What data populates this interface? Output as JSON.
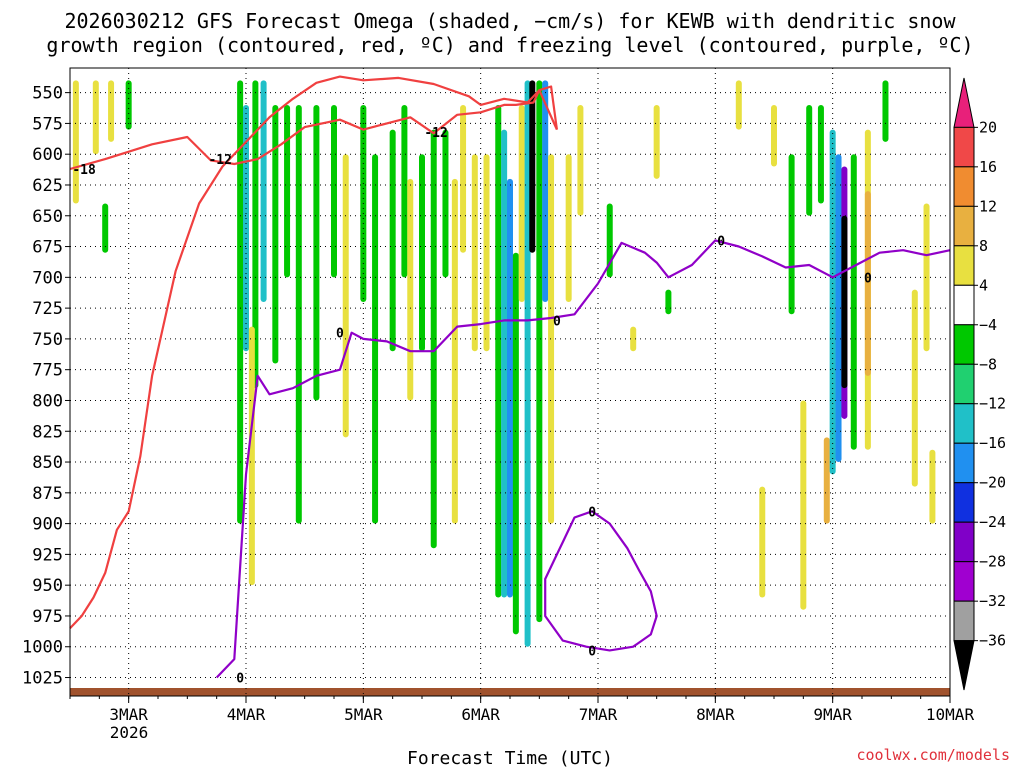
{
  "chart_data": {
    "type": "heatmap",
    "title_line1": "2026030212 GFS Forecast Omega (shaded, −cm/s) for KEWB with dendritic snow",
    "title_line2": "growth region (contoured, red, ºC) and freezing level (contoured, purple, ºC)",
    "xlabel": "Forecast Time (UTC)",
    "ylabel": "",
    "x_ticks": [
      "3MAR",
      "4MAR",
      "5MAR",
      "6MAR",
      "7MAR",
      "8MAR",
      "9MAR",
      "10MAR"
    ],
    "x_year": "2026",
    "xlim": [
      2.5,
      10.0
    ],
    "y_ticks": [
      550,
      575,
      600,
      625,
      650,
      675,
      700,
      725,
      750,
      775,
      800,
      825,
      850,
      875,
      900,
      925,
      950,
      975,
      1000,
      1025
    ],
    "ylim": [
      530,
      1040
    ],
    "y_reversed": true,
    "grid": true,
    "colorbar": {
      "labels": [
        "20",
        "16",
        "12",
        "8",
        "4",
        "−4",
        "−8",
        "−12",
        "−16",
        "−20",
        "−24",
        "−28",
        "−32",
        "−36"
      ],
      "colors": [
        "#e8207a",
        "#f04848",
        "#f08c30",
        "#e8b040",
        "#e8e040",
        "#ffffff",
        "#00c800",
        "#20d070",
        "#20c0c8",
        "#2090f0",
        "#1030e0",
        "#8000c8",
        "#a000d0",
        "#a0a0a0",
        "#000000"
      ]
    },
    "contour_labels": {
      "dgz_cold": "-18",
      "dgz_warm": "-12",
      "freezing": "0"
    },
    "dendritic_growth_upper_hPa": {
      "x": [
        2.5,
        2.8,
        3.0,
        3.2,
        3.5,
        3.7,
        3.9,
        4.1,
        4.3,
        4.5,
        4.8,
        5.0,
        5.2,
        5.4,
        5.6,
        5.8,
        6.0,
        6.2,
        6.3,
        6.45,
        6.5,
        6.6,
        6.65
      ],
      "values": [
        612,
        604,
        598,
        592,
        586,
        605,
        608,
        604,
        592,
        578,
        572,
        580,
        575,
        570,
        583,
        568,
        566,
        560,
        560,
        558,
        548,
        545,
        580
      ]
    },
    "dendritic_growth_lower_hPa": {
      "x": [
        2.5,
        2.6,
        2.7,
        2.8,
        2.9,
        3.0,
        3.1,
        3.2,
        3.4,
        3.6,
        3.8,
        4.0,
        4.2,
        4.4,
        4.6,
        4.8,
        5.0,
        5.3,
        5.6,
        5.9,
        6.0,
        6.2,
        6.4,
        6.5,
        6.65
      ],
      "values": [
        985,
        975,
        960,
        940,
        905,
        890,
        845,
        780,
        695,
        640,
        610,
        590,
        570,
        555,
        542,
        537,
        540,
        538,
        543,
        553,
        560,
        555,
        558,
        548,
        580
      ]
    },
    "freezing_level_hPa": {
      "x": [
        3.75,
        3.9,
        4.0,
        4.1,
        4.2,
        4.4,
        4.6,
        4.8,
        4.9,
        5.0,
        5.2,
        5.4,
        5.6,
        5.8,
        6.0,
        6.2,
        6.4,
        6.6,
        6.8,
        7.0,
        7.2,
        7.4,
        7.5,
        7.6,
        7.8,
        8.0,
        8.2,
        8.4,
        8.6,
        8.8,
        9.0,
        9.2,
        9.4,
        9.6,
        9.8,
        10.0
      ],
      "values": [
        1025,
        1010,
        860,
        780,
        795,
        790,
        780,
        775,
        745,
        750,
        752,
        760,
        760,
        740,
        738,
        735,
        735,
        733,
        730,
        705,
        672,
        680,
        688,
        700,
        690,
        670,
        675,
        683,
        692,
        690,
        700,
        690,
        680,
        678,
        682,
        678
      ]
    },
    "freezing_level_closed_hPa": {
      "x": [
        6.65,
        6.7,
        6.8,
        6.95,
        7.1,
        7.25,
        7.35,
        7.45,
        7.5,
        7.45,
        7.3,
        7.1,
        6.9,
        6.7,
        6.55,
        6.55,
        6.65
      ],
      "values": [
        925,
        915,
        895,
        890,
        900,
        920,
        938,
        955,
        975,
        990,
        1000,
        1003,
        1000,
        995,
        975,
        945,
        925
      ]
    },
    "omega_cells": [
      {
        "x": 2.55,
        "p_top": 540,
        "p_bot": 640,
        "value": 5
      },
      {
        "x": 2.72,
        "p_top": 540,
        "p_bot": 600,
        "value": 5
      },
      {
        "x": 2.85,
        "p_top": 540,
        "p_bot": 590,
        "value": 5
      },
      {
        "x": 3.0,
        "p_top": 540,
        "p_bot": 580,
        "value": -6
      },
      {
        "x": 2.8,
        "p_top": 640,
        "p_bot": 680,
        "value": -6
      },
      {
        "x": 3.95,
        "p_top": 540,
        "p_bot": 900,
        "value": -6
      },
      {
        "x": 4.0,
        "p_top": 560,
        "p_bot": 760,
        "value": -12
      },
      {
        "x": 4.08,
        "p_top": 540,
        "p_bot": 790,
        "value": -6
      },
      {
        "x": 4.15,
        "p_top": 540,
        "p_bot": 720,
        "value": -12
      },
      {
        "x": 4.05,
        "p_top": 740,
        "p_bot": 950,
        "value": 5
      },
      {
        "x": 4.25,
        "p_top": 560,
        "p_bot": 770,
        "value": -6
      },
      {
        "x": 4.35,
        "p_top": 560,
        "p_bot": 700,
        "value": -6
      },
      {
        "x": 4.45,
        "p_top": 560,
        "p_bot": 900,
        "value": -6
      },
      {
        "x": 4.6,
        "p_top": 560,
        "p_bot": 800,
        "value": -6
      },
      {
        "x": 4.75,
        "p_top": 560,
        "p_bot": 700,
        "value": -6
      },
      {
        "x": 4.85,
        "p_top": 600,
        "p_bot": 830,
        "value": 5
      },
      {
        "x": 5.0,
        "p_top": 560,
        "p_bot": 720,
        "value": -6
      },
      {
        "x": 5.1,
        "p_top": 600,
        "p_bot": 900,
        "value": -6
      },
      {
        "x": 5.25,
        "p_top": 580,
        "p_bot": 760,
        "value": -6
      },
      {
        "x": 5.35,
        "p_top": 560,
        "p_bot": 700,
        "value": -6
      },
      {
        "x": 5.4,
        "p_top": 620,
        "p_bot": 800,
        "value": 5
      },
      {
        "x": 5.5,
        "p_top": 600,
        "p_bot": 760,
        "value": -6
      },
      {
        "x": 5.6,
        "p_top": 580,
        "p_bot": 920,
        "value": -6
      },
      {
        "x": 5.7,
        "p_top": 580,
        "p_bot": 700,
        "value": -6
      },
      {
        "x": 5.78,
        "p_top": 620,
        "p_bot": 900,
        "value": 5
      },
      {
        "x": 5.85,
        "p_top": 560,
        "p_bot": 680,
        "value": 5
      },
      {
        "x": 5.95,
        "p_top": 600,
        "p_bot": 760,
        "value": 5
      },
      {
        "x": 6.05,
        "p_top": 600,
        "p_bot": 760,
        "value": 5
      },
      {
        "x": 6.15,
        "p_top": 560,
        "p_bot": 960,
        "value": -6
      },
      {
        "x": 6.2,
        "p_top": 580,
        "p_bot": 960,
        "value": -12
      },
      {
        "x": 6.25,
        "p_top": 620,
        "p_bot": 960,
        "value": -18
      },
      {
        "x": 6.3,
        "p_top": 680,
        "p_bot": 990,
        "value": -6
      },
      {
        "x": 6.35,
        "p_top": 560,
        "p_bot": 720,
        "value": 5
      },
      {
        "x": 6.4,
        "p_top": 540,
        "p_bot": 1000,
        "value": -12
      },
      {
        "x": 6.44,
        "p_top": 540,
        "p_bot": 680,
        "value": -36
      },
      {
        "x": 6.5,
        "p_top": 540,
        "p_bot": 980,
        "value": -6
      },
      {
        "x": 6.55,
        "p_top": 540,
        "p_bot": 720,
        "value": -18
      },
      {
        "x": 6.6,
        "p_top": 600,
        "p_bot": 900,
        "value": 5
      },
      {
        "x": 6.75,
        "p_top": 600,
        "p_bot": 720,
        "value": 5
      },
      {
        "x": 6.85,
        "p_top": 560,
        "p_bot": 650,
        "value": 5
      },
      {
        "x": 7.1,
        "p_top": 640,
        "p_bot": 700,
        "value": -6
      },
      {
        "x": 7.3,
        "p_top": 740,
        "p_bot": 760,
        "value": 5
      },
      {
        "x": 7.5,
        "p_top": 560,
        "p_bot": 620,
        "value": 5
      },
      {
        "x": 7.6,
        "p_top": 710,
        "p_bot": 730,
        "value": -6
      },
      {
        "x": 8.2,
        "p_top": 540,
        "p_bot": 580,
        "value": 5
      },
      {
        "x": 8.4,
        "p_top": 870,
        "p_bot": 960,
        "value": 5
      },
      {
        "x": 8.5,
        "p_top": 560,
        "p_bot": 610,
        "value": 5
      },
      {
        "x": 8.65,
        "p_top": 600,
        "p_bot": 730,
        "value": -6
      },
      {
        "x": 8.75,
        "p_top": 800,
        "p_bot": 970,
        "value": 5
      },
      {
        "x": 8.8,
        "p_top": 560,
        "p_bot": 650,
        "value": -6
      },
      {
        "x": 8.9,
        "p_top": 560,
        "p_bot": 640,
        "value": -6
      },
      {
        "x": 8.95,
        "p_top": 830,
        "p_bot": 900,
        "value": 10
      },
      {
        "x": 9.0,
        "p_top": 580,
        "p_bot": 860,
        "value": -12
      },
      {
        "x": 9.05,
        "p_top": 600,
        "p_bot": 850,
        "value": -18
      },
      {
        "x": 9.1,
        "p_top": 610,
        "p_bot": 815,
        "value": -24
      },
      {
        "x": 9.1,
        "p_top": 650,
        "p_bot": 790,
        "value": -36
      },
      {
        "x": 9.18,
        "p_top": 600,
        "p_bot": 840,
        "value": -6
      },
      {
        "x": 9.3,
        "p_top": 580,
        "p_bot": 840,
        "value": 5
      },
      {
        "x": 9.3,
        "p_top": 630,
        "p_bot": 780,
        "value": 10
      },
      {
        "x": 9.45,
        "p_top": 540,
        "p_bot": 590,
        "value": -6
      },
      {
        "x": 9.7,
        "p_top": 710,
        "p_bot": 870,
        "value": 5
      },
      {
        "x": 9.8,
        "p_top": 640,
        "p_bot": 760,
        "value": 5
      },
      {
        "x": 9.85,
        "p_top": 840,
        "p_bot": 900,
        "value": 5
      }
    ]
  },
  "credit": "coolwx.com/models"
}
